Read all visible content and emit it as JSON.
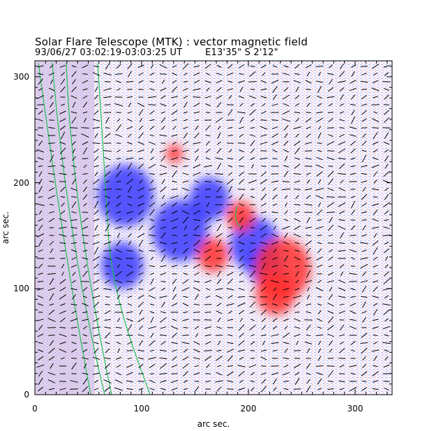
{
  "header": {
    "title": "Solar Flare Telescope (MTK) : vector magnetic field",
    "date_time": "93/06/27  03:02:19-03:03:25 UT",
    "position": "E13'35\"  S 2'12\""
  },
  "axes": {
    "xlabel": "arc sec.",
    "ylabel": "arc sec.",
    "x_ticks": [
      "0",
      "100",
      "200",
      "300"
    ],
    "y_ticks": [
      "0",
      "100",
      "200",
      "300"
    ],
    "xlim": [
      0,
      335
    ],
    "ylim": [
      0,
      315
    ]
  },
  "colors": {
    "positive_polarity": "#ff3030",
    "negative_polarity": "#3838ff",
    "contour": "#22c055",
    "vector": "#000000",
    "background": "#ffffff"
  },
  "image": {
    "description_type": "vector-magnetogram",
    "blobs": [
      {
        "polarity": "negative",
        "x": 258,
        "y": 330,
        "r": 40
      },
      {
        "polarity": "negative",
        "x": 300,
        "y": 285,
        "r": 28
      },
      {
        "polarity": "negative",
        "x": 365,
        "y": 350,
        "r": 35
      },
      {
        "polarity": "negative",
        "x": 380,
        "y": 380,
        "r": 26
      },
      {
        "polarity": "negative",
        "x": 180,
        "y": 280,
        "r": 40
      },
      {
        "polarity": "negative",
        "x": 175,
        "y": 380,
        "r": 30
      },
      {
        "polarity": "positive",
        "x": 345,
        "y": 310,
        "r": 20
      },
      {
        "polarity": "positive",
        "x": 305,
        "y": 365,
        "r": 22
      },
      {
        "polarity": "positive",
        "x": 405,
        "y": 385,
        "r": 40
      },
      {
        "polarity": "positive",
        "x": 395,
        "y": 420,
        "r": 28
      },
      {
        "polarity": "positive",
        "x": 250,
        "y": 220,
        "r": 12
      }
    ]
  }
}
